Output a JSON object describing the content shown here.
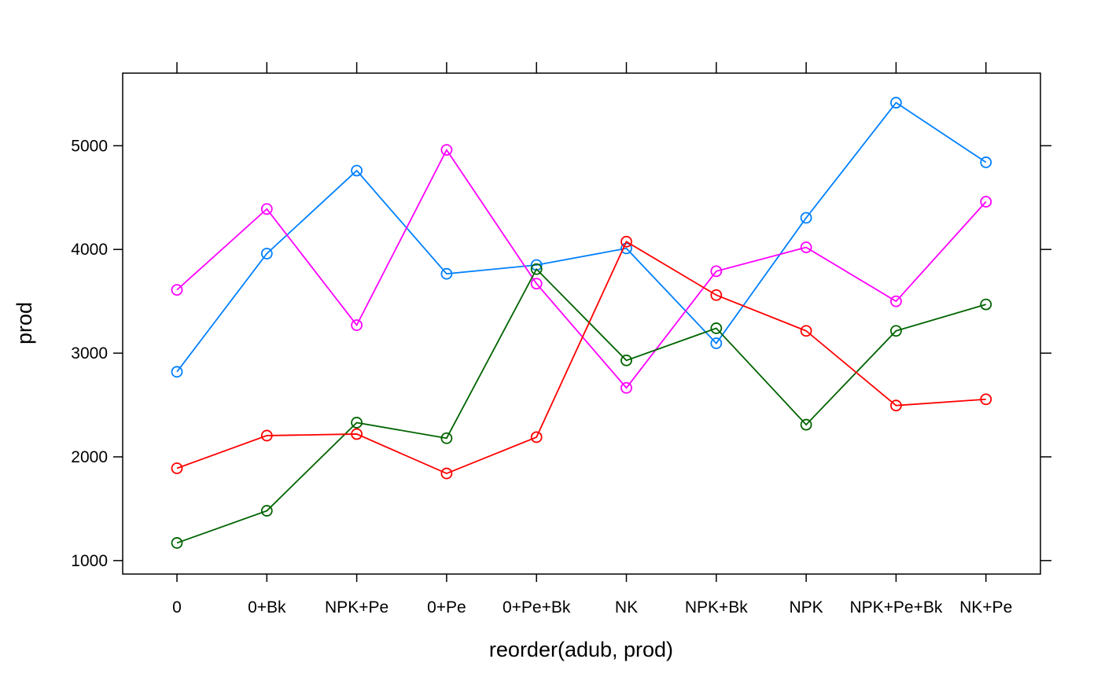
{
  "chart_data": {
    "type": "line",
    "xlabel": "reorder(adub, prod)",
    "ylabel": "prod",
    "categories": [
      "0",
      "0+Bk",
      "NPK+Pe",
      "0+Pe",
      "0+Pe+Bk",
      "NK",
      "NPK+Bk",
      "NPK",
      "NPK+Pe+Bk",
      "NK+Pe"
    ],
    "yticks": [
      1000,
      2000,
      3000,
      4000,
      5000
    ],
    "ylim": [
      870,
      5700
    ],
    "grid": false,
    "legend": "none",
    "series": [
      {
        "color": "#0080ff",
        "values": [
          2820,
          3960,
          4760,
          3765,
          3850,
          4010,
          3095,
          4305,
          5415,
          4840
        ]
      },
      {
        "color": "#ff00ff",
        "values": [
          3610,
          4390,
          3270,
          4960,
          3670,
          2665,
          3790,
          4020,
          3500,
          4460
        ]
      },
      {
        "color": "#006400",
        "values": [
          1170,
          1480,
          2330,
          2180,
          3810,
          2930,
          3240,
          2310,
          3215,
          3470
        ]
      },
      {
        "color": "#ff0000",
        "values": [
          1890,
          2205,
          2220,
          1840,
          2190,
          4075,
          3560,
          3215,
          2495,
          2555
        ]
      }
    ]
  }
}
